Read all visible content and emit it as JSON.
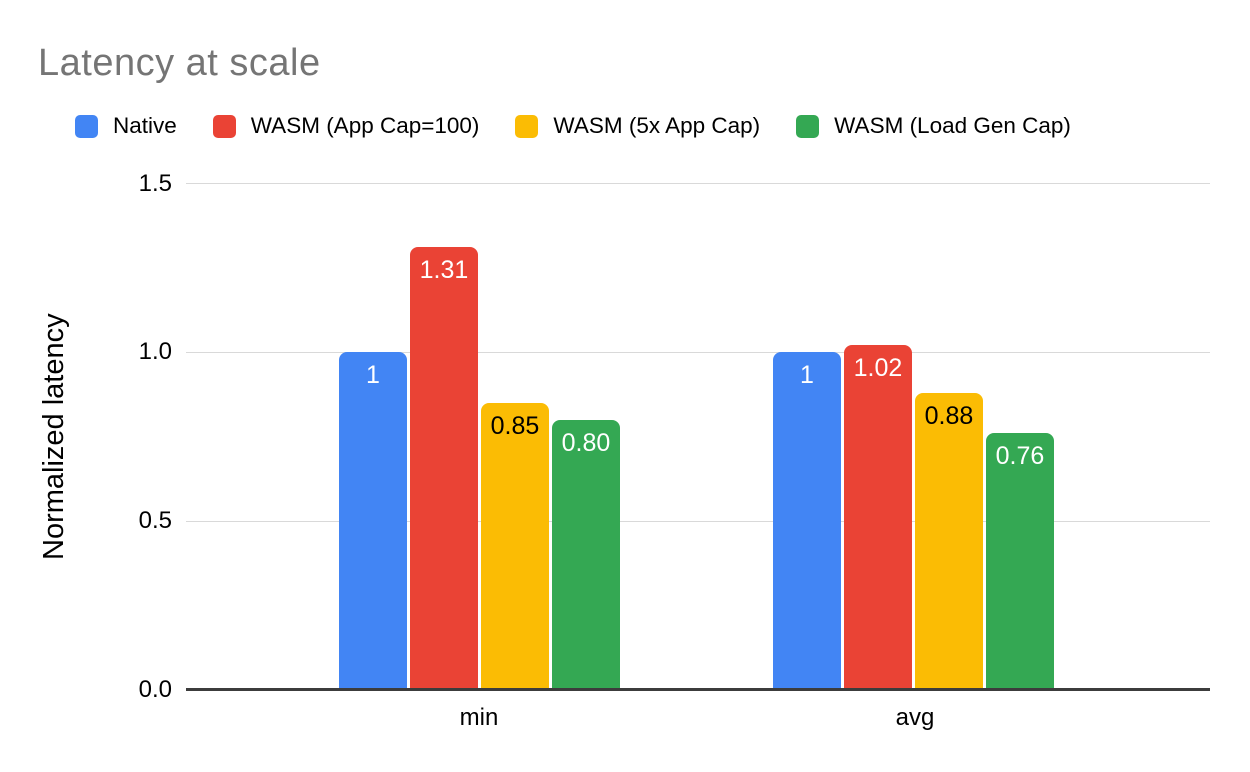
{
  "chart_data": {
    "type": "bar",
    "title": "Latency at scale",
    "ylabel": "Normalized latency",
    "xlabel": "",
    "categories": [
      "min",
      "avg"
    ],
    "series": [
      {
        "name": "Native",
        "color": "#4285F4",
        "value_text_color": "#ffffff",
        "values": [
          1.0,
          1.0
        ],
        "value_labels": [
          "1",
          "1"
        ]
      },
      {
        "name": "WASM (App Cap=100)",
        "color": "#EA4335",
        "value_text_color": "#ffffff",
        "values": [
          1.31,
          1.02
        ],
        "value_labels": [
          "1.31",
          "1.02"
        ]
      },
      {
        "name": "WASM (5x App Cap)",
        "color": "#FBBC04",
        "value_text_color": "#000000",
        "values": [
          0.85,
          0.88
        ],
        "value_labels": [
          "0.85",
          "0.88"
        ]
      },
      {
        "name": "WASM (Load Gen Cap)",
        "color": "#34A853",
        "value_text_color": "#ffffff",
        "values": [
          0.8,
          0.76
        ],
        "value_labels": [
          "0.80",
          "0.76"
        ]
      }
    ],
    "ylim": [
      0,
      1.5
    ],
    "yticks": [
      "0.0",
      "0.5",
      "1.0",
      "1.5"
    ],
    "ytick_values": [
      0,
      0.5,
      1.0,
      1.5
    ],
    "grid": true,
    "legend_position": "top",
    "colors": {
      "title_text": "#757575",
      "gridline": "#d9d9d9",
      "axis_line": "#3c3c3c",
      "tick_text": "#000000",
      "legend_text": "#000000",
      "background": "#ffffff"
    }
  }
}
